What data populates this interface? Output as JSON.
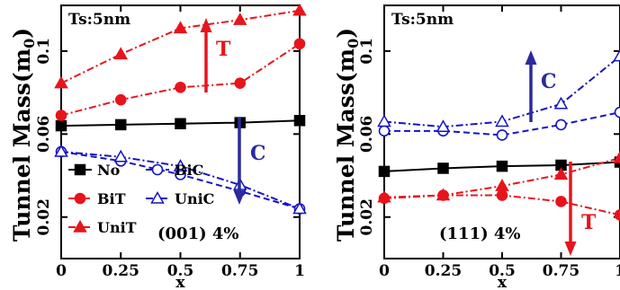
{
  "chart_data": [
    {
      "type": "line",
      "panel": "left",
      "ylabel": "Tunnel Mass(m",
      "ylabel_sub": "0",
      "ylabel_close": ")",
      "xlabel": "x",
      "ylim": [
        0.0,
        0.122
      ],
      "yticks": [
        0.02,
        0.06,
        0.1
      ],
      "ytick_labels": [
        "0.02",
        "0.06",
        "0.1"
      ],
      "xlim": [
        0,
        1
      ],
      "xticks": [
        0,
        0.25,
        0.5,
        0.75,
        1
      ],
      "xtick_labels": [
        "0",
        "0.25",
        "0.5",
        "0.75",
        "1"
      ],
      "x": [
        0,
        0.25,
        0.5,
        0.75,
        1
      ],
      "annotations": {
        "corner_text": "Ts:5nm",
        "orientation_text": "(001)  4%",
        "arrow_up_label": "T",
        "arrow_down_label": "C"
      },
      "legend": [
        "No",
        "BiC",
        "BiT",
        "UniC",
        "UniT"
      ],
      "series": [
        {
          "name": "No",
          "values": [
            0.064,
            0.0645,
            0.065,
            0.0655,
            0.0665
          ],
          "color": "#000000",
          "marker": "square",
          "fill": true,
          "dash": "solid"
        },
        {
          "name": "BiT",
          "values": [
            0.069,
            0.0765,
            0.0825,
            0.0845,
            0.1035
          ],
          "color": "#e8141c",
          "marker": "circle",
          "fill": true,
          "dash": "dashdot"
        },
        {
          "name": "UniT",
          "values": [
            0.0845,
            0.0985,
            0.111,
            0.115,
            0.1195
          ],
          "color": "#e8141c",
          "marker": "triangle",
          "fill": true,
          "dash": "dashdot"
        },
        {
          "name": "BiC",
          "values": [
            0.0515,
            0.047,
            0.0405,
            0.0325,
            0.024
          ],
          "color": "#1414c8",
          "marker": "circle",
          "fill": false,
          "dash": "dashed"
        },
        {
          "name": "UniC",
          "values": [
            0.0515,
            0.049,
            0.0445,
            0.0355,
            0.024
          ],
          "color": "#1414c8",
          "marker": "triangle",
          "fill": false,
          "dash": "dashdot"
        }
      ]
    },
    {
      "type": "line",
      "panel": "right",
      "ylabel": "Tunnel Mass(m",
      "ylabel_sub": "0",
      "ylabel_close": ")",
      "xlabel": "x",
      "ylim": [
        0.0,
        0.122
      ],
      "yticks": [
        0.02,
        0.06,
        0.1
      ],
      "ytick_labels": [
        "0.02",
        "0.06",
        "0.1"
      ],
      "xlim": [
        0,
        1
      ],
      "xticks": [
        0,
        0.25,
        0.5,
        0.75,
        1
      ],
      "xtick_labels": [
        "0",
        "0.25",
        "0.5",
        "0.75",
        "1"
      ],
      "x": [
        0,
        0.25,
        0.5,
        0.75,
        1
      ],
      "annotations": {
        "corner_text": "Ts:5nm",
        "orientation_text": "(111)  4%",
        "arrow_up_label": "C",
        "arrow_down_label": "T"
      },
      "series": [
        {
          "name": "No",
          "values": [
            0.042,
            0.0435,
            0.0445,
            0.045,
            0.0465
          ],
          "color": "#000000",
          "marker": "square",
          "fill": true,
          "dash": "solid"
        },
        {
          "name": "BiT",
          "values": [
            0.029,
            0.0305,
            0.0305,
            0.0275,
            0.021
          ],
          "color": "#e8141c",
          "marker": "circle",
          "fill": true,
          "dash": "dashdot"
        },
        {
          "name": "UniT",
          "values": [
            0.0295,
            0.0305,
            0.035,
            0.0405,
            0.0485
          ],
          "color": "#e8141c",
          "marker": "triangle",
          "fill": true,
          "dash": "dashdot"
        },
        {
          "name": "BiC",
          "values": [
            0.0615,
            0.0615,
            0.0595,
            0.0645,
            0.0705
          ],
          "color": "#1414c8",
          "marker": "circle",
          "fill": false,
          "dash": "dashed"
        },
        {
          "name": "UniC",
          "values": [
            0.066,
            0.0635,
            0.066,
            0.0745,
            0.0975
          ],
          "color": "#1414c8",
          "marker": "triangle",
          "fill": false,
          "dash": "dashdot"
        }
      ]
    }
  ]
}
